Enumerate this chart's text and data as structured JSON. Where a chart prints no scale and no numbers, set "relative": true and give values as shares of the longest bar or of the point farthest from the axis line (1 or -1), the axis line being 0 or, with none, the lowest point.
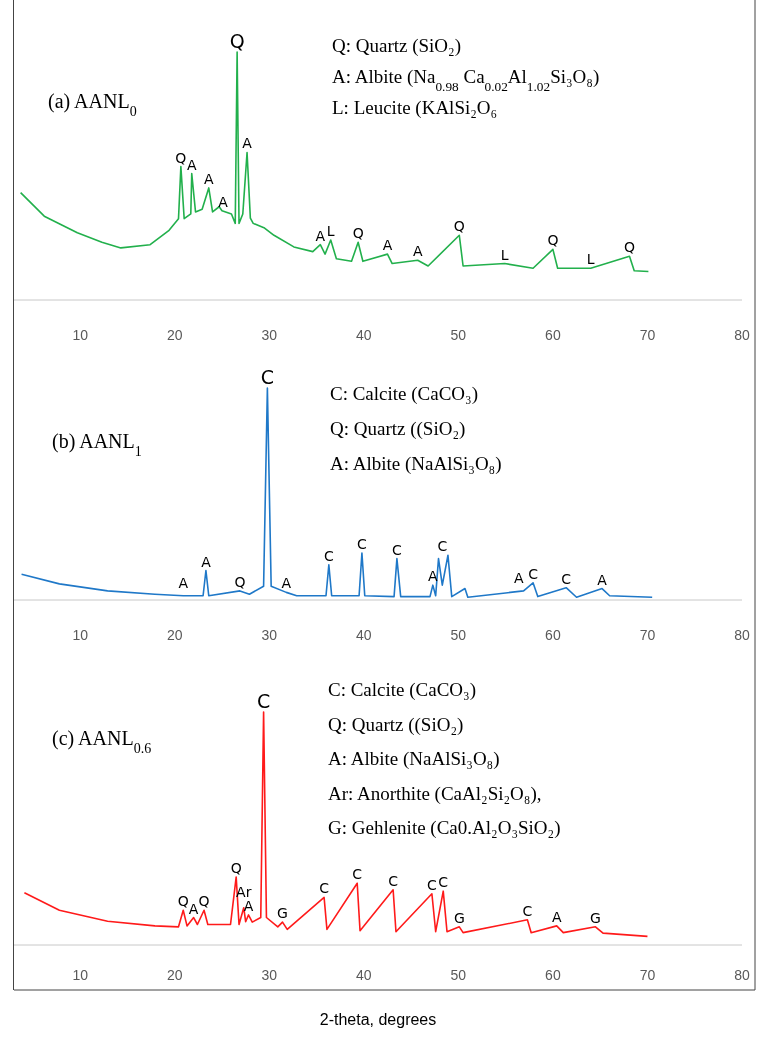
{
  "chart_data": [
    {
      "type": "line",
      "title": "(a) AANL$_{0}$",
      "relative": true,
      "xlim": [
        3,
        80
      ],
      "xticks": [
        10,
        20,
        30,
        40,
        50,
        60,
        70,
        80
      ],
      "annotations": [
        "Q: Quartz (SiO₂)",
        "A: Albite (Na$_{0.98}$ Ca$_{0.02}$Al$_{1.02}$Si₃O₈)",
        "L: Leucite (KAlSi₂O₆",
        {
          "text": "Q",
          "x": 26.6,
          "y": 1.0
        },
        {
          "text": "Q",
          "x": 20.65,
          "y": 0.538
        },
        {
          "text": "A",
          "x": 21.8,
          "y": 0.51
        },
        {
          "text": "A",
          "x": 23.6,
          "y": 0.452
        },
        {
          "text": "A",
          "x": 25.1,
          "y": 0.36
        },
        {
          "text": "A",
          "x": 27.65,
          "y": 0.595
        },
        {
          "text": "A",
          "x": 35.4,
          "y": 0.223
        },
        {
          "text": "L",
          "x": 36.5,
          "y": 0.242
        },
        {
          "text": "Q",
          "x": 39.4,
          "y": 0.233
        },
        {
          "text": "A",
          "x": 42.5,
          "y": 0.185
        },
        {
          "text": "A",
          "x": 45.7,
          "y": 0.16
        },
        {
          "text": "Q",
          "x": 50.1,
          "y": 0.261
        },
        {
          "text": "L",
          "x": 54.9,
          "y": 0.147
        },
        {
          "text": "Q",
          "x": 60.0,
          "y": 0.204
        },
        {
          "text": "L",
          "x": 64.0,
          "y": 0.13
        },
        {
          "text": "Q",
          "x": 68.1,
          "y": 0.176
        }
      ],
      "series": [
        {
          "color": "#22b04c",
          "x": [
            3.7,
            6.2,
            9.7,
            12.3,
            14.3,
            17.4,
            19.4,
            20.4,
            20.65,
            21.0,
            21.7,
            21.8,
            22.2,
            22.9,
            23.6,
            24.0,
            24.7,
            25.0,
            26.0,
            26.4,
            26.6,
            26.8,
            27.2,
            27.65,
            28.0,
            28.3,
            29.5,
            30.5,
            32.6,
            34.6,
            35.4,
            35.9,
            36.5,
            37.1,
            38.7,
            39.4,
            39.9,
            42.5,
            43.0,
            45.7,
            46.8,
            50.1,
            50.5,
            54.9,
            57.9,
            60.0,
            60.5,
            64.0,
            68.1,
            68.6,
            70.1
          ],
          "values": [
            0.433,
            0.338,
            0.271,
            0.233,
            0.21,
            0.223,
            0.281,
            0.328,
            0.538,
            0.328,
            0.347,
            0.51,
            0.355,
            0.366,
            0.452,
            0.355,
            0.376,
            0.36,
            0.347,
            0.309,
            1.0,
            0.309,
            0.347,
            0.595,
            0.33,
            0.309,
            0.29,
            0.261,
            0.214,
            0.195,
            0.223,
            0.185,
            0.242,
            0.166,
            0.156,
            0.233,
            0.156,
            0.185,
            0.147,
            0.16,
            0.137,
            0.261,
            0.137,
            0.147,
            0.128,
            0.204,
            0.128,
            0.128,
            0.176,
            0.118,
            0.115
          ]
        }
      ]
    },
    {
      "type": "line",
      "title": "(b) AANL$_{1}$",
      "relative": true,
      "xlim": [
        3,
        80
      ],
      "xticks": [
        10,
        20,
        30,
        40,
        50,
        60,
        70,
        80
      ],
      "annotations": [
        "C: Calcite (CaCO₃)",
        "Q: Quartz ((SiO₂)",
        "A: Albite (NaAlSi₃O₈)",
        {
          "text": "C",
          "x": 29.8,
          "y": 1.0
        },
        {
          "text": "A",
          "x": 20.9,
          "y": 0.04
        },
        {
          "text": "A",
          "x": 23.3,
          "y": 0.139
        },
        {
          "text": "Q",
          "x": 26.9,
          "y": 0.043
        },
        {
          "text": "A",
          "x": 31.8,
          "y": 0.036
        },
        {
          "text": "C",
          "x": 36.3,
          "y": 0.166
        },
        {
          "text": "C",
          "x": 39.8,
          "y": 0.222
        },
        {
          "text": "C",
          "x": 43.5,
          "y": 0.195
        },
        {
          "text": "A",
          "x": 47.3,
          "y": 0.07
        },
        {
          "text": "C",
          "x": 48.3,
          "y": 0.211
        },
        {
          "text": "A",
          "x": 56.4,
          "y": 0.06
        },
        {
          "text": "C",
          "x": 57.9,
          "y": 0.081
        },
        {
          "text": "C",
          "x": 61.4,
          "y": 0.058
        },
        {
          "text": "A",
          "x": 65.2,
          "y": 0.054
        }
      ],
      "series": [
        {
          "color": "#1f78c8",
          "x": [
            3.8,
            7.8,
            12.9,
            17.9,
            20.9,
            23.0,
            23.3,
            23.6,
            26.9,
            27.9,
            29.4,
            29.8,
            30.2,
            31.8,
            32.9,
            36.0,
            36.3,
            36.6,
            39.5,
            39.8,
            40.1,
            43.2,
            43.5,
            43.9,
            47.0,
            47.3,
            47.6,
            47.9,
            48.3,
            48.9,
            49.3,
            50.7,
            51.0,
            56.9,
            57.9,
            58.4,
            61.4,
            62.5,
            65.2,
            66.0,
            70.5
          ],
          "values": [
            0.121,
            0.076,
            0.043,
            0.027,
            0.02,
            0.02,
            0.139,
            0.02,
            0.043,
            0.027,
            0.065,
            1.0,
            0.065,
            0.036,
            0.02,
            0.02,
            0.166,
            0.02,
            0.02,
            0.222,
            0.02,
            0.016,
            0.195,
            0.016,
            0.016,
            0.07,
            0.02,
            0.195,
            0.07,
            0.211,
            0.016,
            0.054,
            0.013,
            0.043,
            0.081,
            0.016,
            0.058,
            0.013,
            0.054,
            0.02,
            0.013
          ]
        }
      ]
    },
    {
      "type": "line",
      "title": "(c) AANL$_{0.6}$",
      "relative": true,
      "xlim": [
        3,
        80
      ],
      "xticks": [
        10,
        20,
        30,
        40,
        50,
        60,
        70,
        80
      ],
      "xlabel": "2-theta, degrees",
      "annotations": [
        "C: Calcite (CaCO₃)",
        "Q: Quartz ((SiO₂)",
        "A: Albite (NaAlSi₃O₈)",
        "Ar: Anorthite (CaAl₂Si₂O₈),",
        "G: Gehlenite (Ca0.Al₂O₃SiO₂)",
        {
          "text": "C",
          "x": 29.4,
          "y": 1.0
        },
        {
          "text": "Q",
          "x": 20.9,
          "y": 0.149
        },
        {
          "text": "A",
          "x": 22.0,
          "y": 0.118
        },
        {
          "text": "Q",
          "x": 23.1,
          "y": 0.149
        },
        {
          "text": "Q",
          "x": 26.5,
          "y": 0.292
        },
        {
          "text": "Ar",
          "x": 27.3,
          "y": 0.16
        },
        {
          "text": "A",
          "x": 27.8,
          "y": 0.129
        },
        {
          "text": "G",
          "x": 31.4,
          "y": 0.098
        },
        {
          "text": "C",
          "x": 35.8,
          "y": 0.204
        },
        {
          "text": "C",
          "x": 39.3,
          "y": 0.265
        },
        {
          "text": "C",
          "x": 43.1,
          "y": 0.237
        },
        {
          "text": "C",
          "x": 47.2,
          "y": 0.22
        },
        {
          "text": "C",
          "x": 48.4,
          "y": 0.231
        },
        {
          "text": "G",
          "x": 50.1,
          "y": 0.078
        },
        {
          "text": "C",
          "x": 57.3,
          "y": 0.108
        },
        {
          "text": "A",
          "x": 60.4,
          "y": 0.082
        },
        {
          "text": "G",
          "x": 64.5,
          "y": 0.078
        }
      ],
      "series": [
        {
          "color": "#ff1a1a",
          "x": [
            4.1,
            7.8,
            12.9,
            17.9,
            20.4,
            20.9,
            21.3,
            22.0,
            22.4,
            23.1,
            23.5,
            25.9,
            26.5,
            26.8,
            27.3,
            27.5,
            27.8,
            28.2,
            29.1,
            29.4,
            29.7,
            30.9,
            31.4,
            31.9,
            35.8,
            36.1,
            39.3,
            39.6,
            43.1,
            43.4,
            47.2,
            47.6,
            48.4,
            48.8,
            50.1,
            50.5,
            57.3,
            57.7,
            60.4,
            61.1,
            64.5,
            65.3,
            70.0
          ],
          "values": [
            0.224,
            0.149,
            0.102,
            0.082,
            0.078,
            0.149,
            0.082,
            0.118,
            0.088,
            0.149,
            0.088,
            0.088,
            0.292,
            0.088,
            0.16,
            0.1,
            0.129,
            0.098,
            0.118,
            1.0,
            0.118,
            0.078,
            0.098,
            0.067,
            0.204,
            0.067,
            0.265,
            0.061,
            0.237,
            0.057,
            0.22,
            0.057,
            0.231,
            0.057,
            0.078,
            0.053,
            0.108,
            0.053,
            0.082,
            0.053,
            0.078,
            0.051,
            0.037
          ]
        }
      ]
    }
  ]
}
